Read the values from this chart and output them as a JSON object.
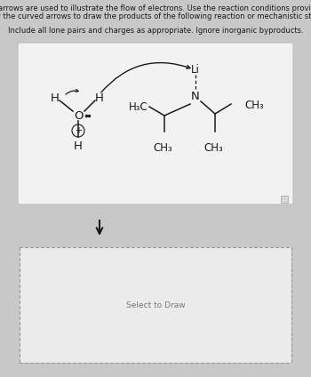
{
  "bg_color": "#c8c8c8",
  "inner_bg": "#e8e8e8",
  "reaction_box_bg": "#f2f2f2",
  "reaction_box_edge": "#bbbbbb",
  "dashed_box_bg": "#ebebeb",
  "dashed_edge": "#999999",
  "title_line1": "Curved arrows are used to illustrate the flow of electrons. Use the reaction conditions provided and",
  "title_line2": "follow the curved arrows to draw the products of the following reaction or mechanistic step(s).",
  "subtitle": "Include all lone pairs and charges as appropriate. Ignore inorganic byproducts.",
  "select_to_draw": "Select to Draw",
  "text_color": "#1a1a1a",
  "font_size_title": 6.0,
  "font_size_chem": 9.5,
  "font_size_sub": 8.5
}
